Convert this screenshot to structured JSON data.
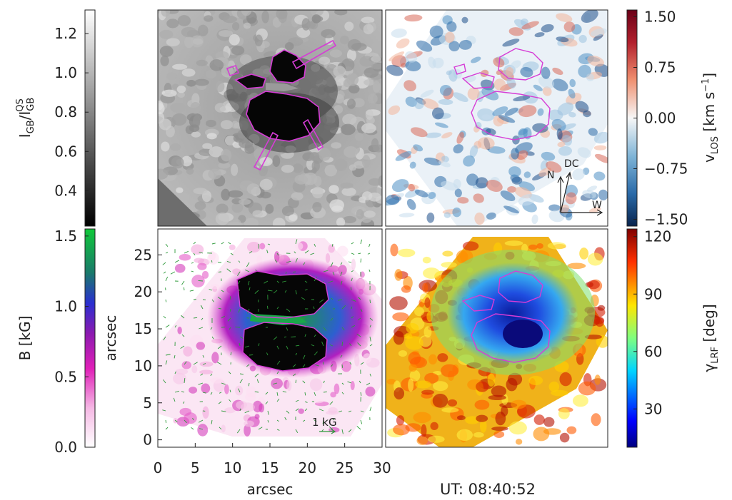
{
  "chart_data": [
    {
      "type": "heatmap",
      "panel": "continuum intensity (top-left)",
      "colorbar": {
        "label": "I_GB/I_GB^QS",
        "ticks": [
          "0.4",
          "0.6",
          "0.8",
          "1.0",
          "1.2"
        ],
        "tick_values": [
          0.4,
          0.6,
          0.8,
          1.0,
          1.2
        ],
        "range": [
          0.22,
          1.32
        ],
        "colormap": "gray"
      },
      "contour_color": "#d63cd6"
    },
    {
      "type": "heatmap",
      "panel": "line-of-sight velocity (top-right)",
      "colorbar": {
        "label": "v_LOS [km s^-1]",
        "ticks": [
          "1.50",
          "0.75",
          "0.00",
          "−0.75",
          "−1.50"
        ],
        "tick_values": [
          1.5,
          0.75,
          0.0,
          -0.75,
          -1.5
        ],
        "range": [
          -1.6,
          1.6
        ],
        "colormap": "red-white-blue"
      },
      "orientation_labels": {
        "north": "N",
        "disk_center": "DC",
        "west": "W"
      }
    },
    {
      "type": "heatmap",
      "panel": "magnetic field strength (bottom-left)",
      "colorbar": {
        "label": "B [kG]",
        "ticks": [
          "0.0",
          "0.5",
          "1.0",
          "1.5"
        ],
        "tick_values": [
          0.0,
          0.5,
          1.0,
          1.5
        ],
        "range": [
          0.0,
          1.55
        ],
        "colormap": "pink-purple-blue-green"
      },
      "x_axis": {
        "label": "arcsec",
        "ticks": [
          "0",
          "5",
          "10",
          "15",
          "20",
          "25",
          "30"
        ],
        "tick_values": [
          0,
          5,
          10,
          15,
          20,
          25,
          30
        ],
        "range": [
          0,
          30
        ]
      },
      "y_axis": {
        "label": "arcsec",
        "ticks": [
          "0",
          "5",
          "10",
          "15",
          "20",
          "25"
        ],
        "tick_values": [
          0,
          5,
          10,
          15,
          20,
          25
        ],
        "range": [
          -1,
          28.5
        ]
      },
      "vector_legend": "1 kG"
    },
    {
      "type": "heatmap",
      "panel": "magnetic field inclination (bottom-right)",
      "colorbar": {
        "label": "γ_LRF [deg]",
        "ticks": [
          "120",
          "90",
          "60",
          "30"
        ],
        "tick_values": [
          120,
          90,
          60,
          30
        ],
        "range": [
          10,
          124
        ],
        "colormap": "jet"
      }
    }
  ],
  "labels": {
    "intensity": {
      "main": "I",
      "sub": "GB",
      "sep": "/",
      "main2": "I",
      "sub2": "GB",
      "sup2": "QS"
    },
    "vlos": {
      "main": "v",
      "sub": "LOS",
      "unit_open": " [km s",
      "unit_sup": "−1",
      "unit_close": "]"
    },
    "bfield": "B [kG]",
    "gamma": {
      "main": "γ",
      "sub": "LRF",
      "unit": " [deg]"
    },
    "ylabel": "arcsec",
    "xlabel": "arcsec",
    "ut": "UT: 08:40:52"
  },
  "colors": {
    "contour": "#d63cd6",
    "vector": "#2e9a3a",
    "frame": "#222222"
  }
}
